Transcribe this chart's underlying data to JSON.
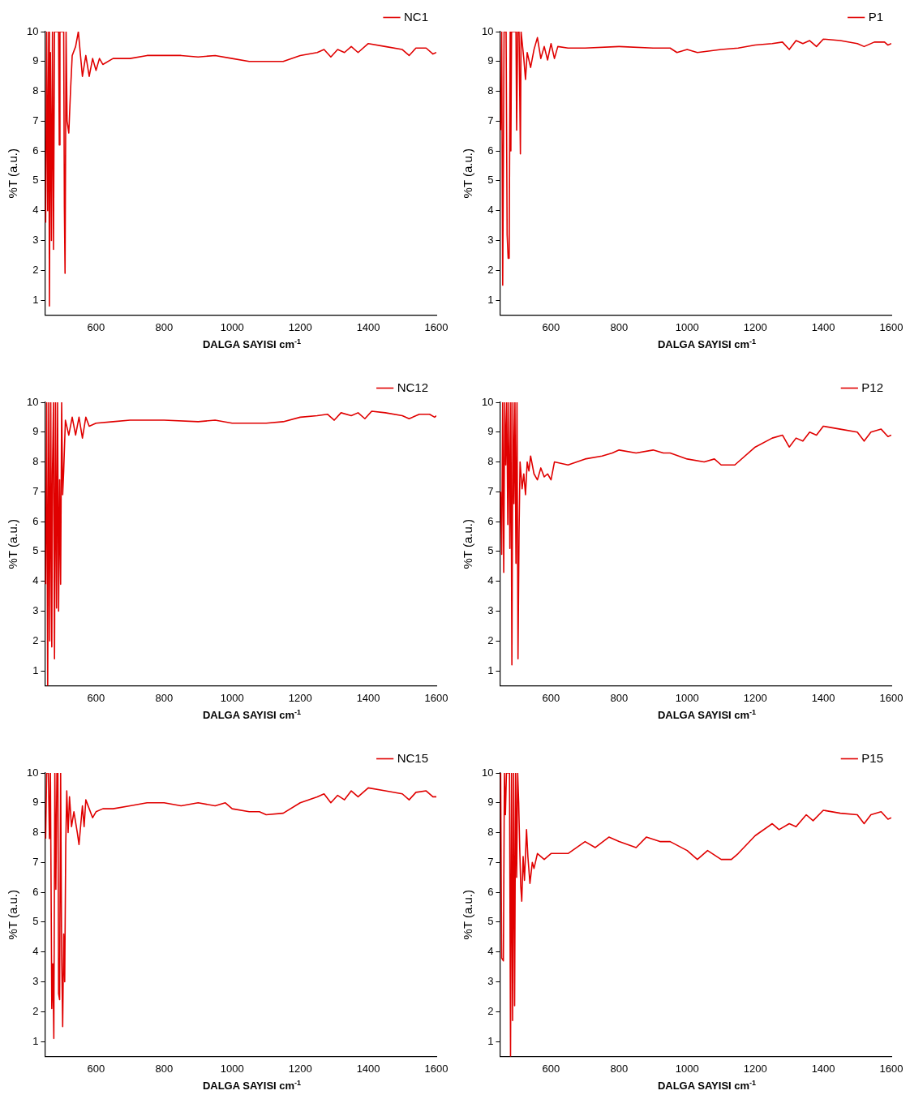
{
  "chart_data": [
    {
      "type": "line",
      "xlabel": "DALGA SAYISI cm$^{-1}$",
      "ylabel": "%T (a.u.)",
      "xlim": [
        450,
        1600
      ],
      "ylim": [
        0.5,
        10
      ],
      "xticks": [
        600,
        800,
        1000,
        1200,
        1400,
        1600
      ],
      "yticks": [
        1,
        2,
        3,
        4,
        5,
        6,
        7,
        8,
        9,
        10
      ],
      "legend": "top right",
      "series": [
        {
          "name": "NC1",
          "color": "#e00000",
          "x": [
            452,
            455,
            458,
            461,
            463,
            466,
            469,
            472,
            475,
            478,
            490,
            492,
            494,
            505,
            507,
            509,
            512,
            515,
            520,
            525,
            530,
            540,
            548,
            560,
            570,
            580,
            590,
            600,
            610,
            620,
            650,
            700,
            750,
            800,
            850,
            900,
            950,
            1000,
            1050,
            1100,
            1150,
            1200,
            1250,
            1270,
            1290,
            1310,
            1330,
            1350,
            1370,
            1400,
            1450,
            1500,
            1520,
            1540,
            1570,
            1590,
            1600
          ],
          "values": [
            3.6,
            10,
            4,
            10,
            0.8,
            9.3,
            3,
            10,
            2.7,
            10,
            10,
            6.2,
            10,
            10,
            4.1,
            1.9,
            10,
            7,
            6.6,
            8,
            9.2,
            9.5,
            10,
            8.5,
            9.2,
            8.5,
            9.1,
            8.7,
            9.1,
            8.9,
            9.1,
            9.1,
            9.2,
            9.2,
            9.2,
            9.15,
            9.2,
            9.1,
            9.0,
            9.0,
            9.0,
            9.2,
            9.3,
            9.4,
            9.15,
            9.4,
            9.3,
            9.5,
            9.3,
            9.6,
            9.5,
            9.4,
            9.2,
            9.45,
            9.45,
            9.25,
            9.3
          ]
        }
      ]
    },
    {
      "type": "line",
      "xlabel": "DALGA SAYISI cm$^{-1}$",
      "ylabel": "%T (a.u.)",
      "xlim": [
        450,
        1600
      ],
      "ylim": [
        0.5,
        10
      ],
      "xticks": [
        600,
        800,
        1000,
        1200,
        1400,
        1600
      ],
      "yticks": [
        1,
        2,
        3,
        4,
        5,
        6,
        7,
        8,
        9,
        10
      ],
      "legend": "top right",
      "series": [
        {
          "name": "P1",
          "color": "#e00000",
          "x": [
            452,
            455,
            458,
            462,
            468,
            471,
            474,
            477,
            480,
            482,
            484,
            497,
            499,
            502,
            506,
            510,
            512,
            520,
            525,
            530,
            540,
            550,
            560,
            570,
            580,
            590,
            600,
            610,
            620,
            650,
            700,
            800,
            900,
            950,
            970,
            1000,
            1030,
            1100,
            1150,
            1200,
            1250,
            1280,
            1300,
            1320,
            1340,
            1360,
            1380,
            1400,
            1450,
            1500,
            1520,
            1550,
            1580,
            1590,
            1600
          ],
          "values": [
            6.7,
            10,
            1.5,
            10,
            10,
            3.2,
            2.4,
            2.4,
            10,
            6,
            10,
            10,
            6.7,
            10,
            10,
            5.9,
            10,
            9.1,
            8.4,
            9.3,
            8.8,
            9.4,
            9.8,
            9.1,
            9.5,
            9.05,
            9.6,
            9.1,
            9.5,
            9.45,
            9.45,
            9.5,
            9.45,
            9.45,
            9.3,
            9.4,
            9.3,
            9.4,
            9.45,
            9.55,
            9.6,
            9.65,
            9.4,
            9.7,
            9.6,
            9.7,
            9.5,
            9.75,
            9.7,
            9.6,
            9.5,
            9.65,
            9.65,
            9.55,
            9.6
          ]
        }
      ]
    },
    {
      "type": "line",
      "xlabel": "DALGA SAYISI cm$^{-1}$",
      "ylabel": "%T (a.u.)",
      "xlim": [
        450,
        1600
      ],
      "ylim": [
        0.5,
        10
      ],
      "xticks": [
        600,
        800,
        1000,
        1200,
        1400,
        1600
      ],
      "yticks": [
        1,
        2,
        3,
        4,
        5,
        6,
        7,
        8,
        9,
        10
      ],
      "legend": "top right",
      "series": [
        {
          "name": "NC12",
          "color": "#e00000",
          "x": [
            452,
            455,
            458,
            461,
            464,
            467,
            470,
            472,
            475,
            478,
            481,
            484,
            487,
            490,
            493,
            496,
            499,
            502,
            505,
            510,
            520,
            530,
            540,
            550,
            560,
            570,
            580,
            600,
            650,
            700,
            800,
            900,
            950,
            1000,
            1050,
            1100,
            1150,
            1200,
            1250,
            1280,
            1300,
            1320,
            1350,
            1370,
            1390,
            1410,
            1450,
            1500,
            1520,
            1550,
            1580,
            1595,
            1600
          ],
          "values": [
            3.9,
            10,
            0.5,
            10,
            2,
            10,
            1.8,
            7.7,
            10,
            1.4,
            10,
            3.1,
            10,
            3,
            7.4,
            3.9,
            10,
            6.9,
            7.7,
            9.4,
            8.9,
            9.5,
            8.9,
            9.5,
            8.8,
            9.5,
            9.2,
            9.3,
            9.35,
            9.4,
            9.4,
            9.35,
            9.4,
            9.3,
            9.3,
            9.3,
            9.35,
            9.5,
            9.55,
            9.6,
            9.4,
            9.65,
            9.55,
            9.65,
            9.45,
            9.7,
            9.65,
            9.55,
            9.45,
            9.6,
            9.6,
            9.5,
            9.55
          ]
        }
      ]
    },
    {
      "type": "line",
      "xlabel": "DALGA SAYISI cm$^{-1}$",
      "ylabel": "%T (a.u.)",
      "xlim": [
        450,
        1600
      ],
      "ylim": [
        0.5,
        10
      ],
      "xticks": [
        600,
        800,
        1000,
        1200,
        1400,
        1600
      ],
      "yticks": [
        1,
        2,
        3,
        4,
        5,
        6,
        7,
        8,
        9,
        10
      ],
      "legend": "top right",
      "series": [
        {
          "name": "P12",
          "color": "#e00000",
          "x": [
            452,
            455,
            458,
            461,
            464,
            467,
            470,
            473,
            476,
            479,
            482,
            485,
            488,
            491,
            494,
            497,
            500,
            503,
            506,
            509,
            515,
            520,
            525,
            530,
            535,
            540,
            550,
            560,
            570,
            580,
            590,
            600,
            610,
            650,
            700,
            750,
            780,
            800,
            850,
            900,
            930,
            950,
            1000,
            1050,
            1080,
            1100,
            1140,
            1200,
            1250,
            1280,
            1300,
            1320,
            1340,
            1360,
            1380,
            1400,
            1450,
            1500,
            1520,
            1540,
            1570,
            1590,
            1600
          ],
          "values": [
            7,
            4.9,
            10,
            4.3,
            10,
            7.9,
            10,
            5.9,
            10,
            5.1,
            10,
            1.2,
            10,
            6.6,
            10,
            4.6,
            10,
            1.4,
            5.6,
            8,
            7.1,
            7.6,
            6.9,
            8,
            7.7,
            8.2,
            7.6,
            7.4,
            7.8,
            7.5,
            7.6,
            7.4,
            8,
            7.9,
            8.1,
            8.2,
            8.3,
            8.4,
            8.3,
            8.4,
            8.3,
            8.3,
            8.1,
            8.0,
            8.1,
            7.9,
            7.9,
            8.5,
            8.8,
            8.9,
            8.5,
            8.8,
            8.7,
            9.0,
            8.9,
            9.2,
            9.1,
            9.0,
            8.7,
            9.0,
            9.1,
            8.85,
            8.9
          ]
        }
      ]
    },
    {
      "type": "line",
      "xlabel": "DALGA SAYISI cm$^{-1}$",
      "ylabel": "%T (a.u.)",
      "xlim": [
        450,
        1600
      ],
      "ylim": [
        0.5,
        10
      ],
      "xticks": [
        600,
        800,
        1000,
        1200,
        1400,
        1600
      ],
      "yticks": [
        1,
        2,
        3,
        4,
        5,
        6,
        7,
        8,
        9,
        10
      ],
      "legend": "top right",
      "series": [
        {
          "name": "NC15",
          "color": "#e00000",
          "x": [
            452,
            455,
            460,
            463,
            466,
            470,
            473,
            476,
            479,
            482,
            485,
            488,
            490,
            493,
            496,
            499,
            502,
            505,
            508,
            511,
            514,
            518,
            522,
            528,
            535,
            545,
            550,
            560,
            565,
            570,
            580,
            590,
            600,
            620,
            650,
            700,
            750,
            800,
            850,
            900,
            950,
            980,
            1000,
            1050,
            1080,
            1100,
            1150,
            1200,
            1250,
            1270,
            1290,
            1310,
            1330,
            1350,
            1370,
            1400,
            1450,
            1500,
            1520,
            1540,
            1570,
            1590,
            1600
          ],
          "values": [
            7.8,
            10,
            10,
            7.8,
            10,
            2.1,
            3.6,
            1.1,
            10,
            6.1,
            10,
            10,
            2.6,
            2.4,
            10,
            3.9,
            1.5,
            4.6,
            3.0,
            7.6,
            9.4,
            8,
            9.2,
            8.2,
            8.7,
            8.0,
            7.6,
            8.9,
            8.2,
            9.1,
            8.8,
            8.5,
            8.7,
            8.8,
            8.8,
            8.9,
            9.0,
            9.0,
            8.9,
            9.0,
            8.9,
            9.0,
            8.8,
            8.7,
            8.7,
            8.6,
            8.65,
            9.0,
            9.2,
            9.3,
            9.0,
            9.25,
            9.1,
            9.4,
            9.2,
            9.5,
            9.4,
            9.3,
            9.1,
            9.35,
            9.4,
            9.2,
            9.2
          ]
        }
      ]
    },
    {
      "type": "line",
      "xlabel": "DALGA SAYISI cm$^{-1}$",
      "ylabel": "%T (a.u.)",
      "xlim": [
        450,
        1600
      ],
      "ylim": [
        0.5,
        10
      ],
      "xticks": [
        600,
        800,
        1000,
        1200,
        1400,
        1600
      ],
      "yticks": [
        1,
        2,
        3,
        4,
        5,
        6,
        7,
        8,
        9,
        10
      ],
      "legend": "top right",
      "series": [
        {
          "name": "P15",
          "color": "#e00000",
          "x": [
            452,
            455,
            460,
            463,
            466,
            469,
            474,
            478,
            481,
            484,
            487,
            490,
            493,
            496,
            499,
            502,
            505,
            508,
            511,
            514,
            518,
            522,
            528,
            532,
            538,
            545,
            550,
            560,
            580,
            600,
            650,
            700,
            730,
            770,
            800,
            850,
            880,
            920,
            950,
            1000,
            1030,
            1060,
            1100,
            1130,
            1150,
            1200,
            1250,
            1270,
            1300,
            1320,
            1350,
            1370,
            1400,
            1450,
            1500,
            1520,
            1540,
            1570,
            1590,
            1600
          ],
          "values": [
            10,
            3.8,
            3.7,
            10,
            8.6,
            10,
            10,
            10,
            0.5,
            10,
            1.7,
            10,
            2.2,
            10,
            6.5,
            10,
            9,
            7.5,
            6.2,
            5.7,
            7.2,
            6.4,
            8.1,
            7.2,
            6.3,
            7.0,
            6.8,
            7.3,
            7.1,
            7.3,
            7.3,
            7.7,
            7.5,
            7.85,
            7.7,
            7.5,
            7.85,
            7.7,
            7.7,
            7.4,
            7.1,
            7.4,
            7.1,
            7.1,
            7.3,
            7.9,
            8.3,
            8.1,
            8.3,
            8.2,
            8.6,
            8.4,
            8.75,
            8.65,
            8.6,
            8.3,
            8.6,
            8.7,
            8.45,
            8.5
          ]
        }
      ]
    }
  ]
}
